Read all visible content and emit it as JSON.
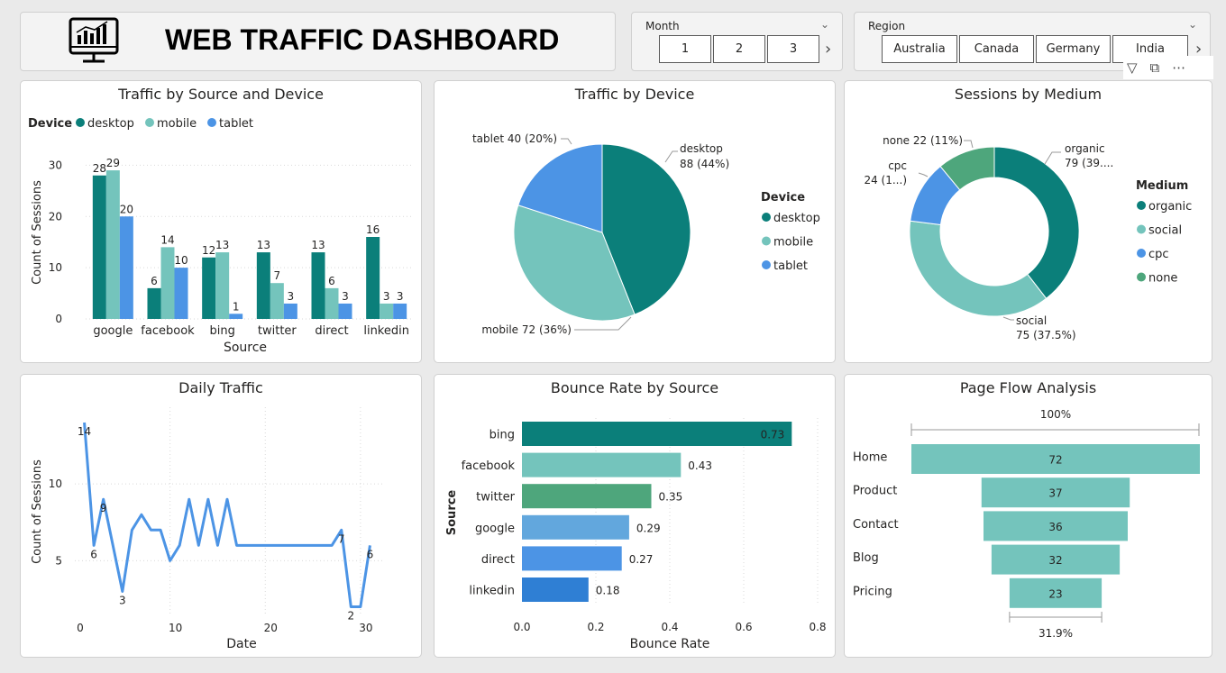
{
  "header": {
    "title": "WEB TRAFFIC DASHBOARD",
    "icon": "monitor-chart-icon"
  },
  "slicers": {
    "month": {
      "label": "Month",
      "options": [
        "1",
        "2",
        "3"
      ]
    },
    "region": {
      "label": "Region",
      "options": [
        "Australia",
        "Canada",
        "Germany",
        "India"
      ]
    }
  },
  "visual_header": {
    "icons": [
      "filter-icon",
      "focus-mode-icon",
      "more-options-icon"
    ]
  },
  "chart_data": [
    {
      "id": "source_device",
      "type": "bar",
      "title": "Traffic by Source and Device",
      "xlabel": "Source",
      "ylabel": "Count of Sessions",
      "legend_title": "Device",
      "legend_position": "top-left",
      "categories": [
        "google",
        "facebook",
        "bing",
        "twitter",
        "direct",
        "linkedin"
      ],
      "series": [
        {
          "name": "desktop",
          "color": "#0b7f7a",
          "values": [
            28,
            6,
            12,
            13,
            13,
            16
          ]
        },
        {
          "name": "mobile",
          "color": "#74c4bc",
          "values": [
            29,
            14,
            13,
            7,
            6,
            3
          ]
        },
        {
          "name": "tablet",
          "color": "#4c94e5",
          "values": [
            20,
            10,
            1,
            3,
            3,
            3
          ]
        }
      ],
      "yticks": [
        "0",
        "10",
        "20",
        "30"
      ],
      "ylim": [
        0,
        32
      ],
      "grid": true
    },
    {
      "id": "device_pie",
      "type": "pie",
      "title": "Traffic by Device",
      "legend_title": "Device",
      "legend_position": "right",
      "slices": [
        {
          "label": "desktop",
          "value": 88,
          "pct": "44%",
          "color": "#0b7f7a",
          "data_label": [
            "desktop",
            "88 (44%)"
          ]
        },
        {
          "label": "mobile",
          "value": 72,
          "pct": "36%",
          "color": "#74c4bc",
          "data_label": [
            "mobile 72 (36%)"
          ]
        },
        {
          "label": "tablet",
          "value": 40,
          "pct": "20%",
          "color": "#4c94e5",
          "data_label": [
            "tablet 40 (20%)"
          ]
        }
      ]
    },
    {
      "id": "medium_donut",
      "type": "pie",
      "title": "Sessions by Medium",
      "legend_title": "Medium",
      "legend_position": "right",
      "slices": [
        {
          "label": "organic",
          "value": 79,
          "color": "#0b7f7a",
          "data_label": [
            "organic",
            "79 (39...."
          ]
        },
        {
          "label": "social",
          "value": 75,
          "color": "#74c4bc",
          "data_label": [
            "social",
            "75 (37.5%)"
          ]
        },
        {
          "label": "cpc",
          "value": 24,
          "color": "#4c94e5",
          "data_label": [
            "cpc",
            "24 (1...)"
          ]
        },
        {
          "label": "none",
          "value": 22,
          "color": "#4ea67c",
          "data_label": [
            "none 22 (11%)"
          ]
        }
      ]
    },
    {
      "id": "daily",
      "type": "line",
      "title": "Daily Traffic",
      "xlabel": "Date",
      "ylabel": "Count of Sessions",
      "color": "#4c94e5",
      "x": [
        1,
        2,
        3,
        4,
        5,
        6,
        7,
        8,
        9,
        10,
        11,
        12,
        13,
        14,
        15,
        16,
        17,
        18,
        19,
        20,
        21,
        22,
        23,
        24,
        25,
        26,
        27,
        28,
        29,
        30,
        31
      ],
      "y": [
        14,
        6,
        9,
        6,
        3,
        7,
        8,
        7,
        7,
        5,
        6,
        9,
        6,
        9,
        6,
        9,
        6,
        6,
        6,
        6,
        6,
        6,
        6,
        6,
        6,
        6,
        6,
        7,
        2,
        2,
        6
      ],
      "labels": [
        {
          "x": 1,
          "y": 14,
          "text": "14"
        },
        {
          "x": 2,
          "y": 6,
          "text": "6"
        },
        {
          "x": 3,
          "y": 9,
          "text": "9"
        },
        {
          "x": 5,
          "y": 3,
          "text": "3"
        },
        {
          "x": 28,
          "y": 7,
          "text": "7"
        },
        {
          "x": 29,
          "y": 2,
          "text": "2"
        },
        {
          "x": 31,
          "y": 6,
          "text": "6"
        }
      ],
      "xticks": [
        "0",
        "10",
        "20",
        "30"
      ],
      "yticks": [
        "5",
        "10"
      ],
      "xlim": [
        0,
        32
      ],
      "ylim": [
        1.5,
        15
      ],
      "grid": true
    },
    {
      "id": "bounce",
      "type": "bar",
      "orientation": "horizontal",
      "title": "Bounce Rate by Source",
      "xlabel": "Bounce Rate",
      "ylabel": "Source",
      "categories": [
        "bing",
        "facebook",
        "twitter",
        "google",
        "direct",
        "linkedin"
      ],
      "values": [
        0.73,
        0.43,
        0.35,
        0.29,
        0.27,
        0.18
      ],
      "labels": [
        "0.73",
        "0.43",
        "0.35",
        "0.29",
        "0.27",
        "0.18"
      ],
      "colors": [
        "#0b7f7a",
        "#74c4bc",
        "#4ea67c",
        "#62a7dd",
        "#4c94e5",
        "#2f7fd4"
      ],
      "xticks": [
        "0.0",
        "0.2",
        "0.4",
        "0.6",
        "0.8"
      ],
      "xlim": [
        0,
        0.8
      ],
      "grid": true
    },
    {
      "id": "funnel",
      "type": "bar",
      "orientation": "funnel",
      "title": "Page Flow Analysis",
      "categories": [
        "Home",
        "Product",
        "Contact",
        "Blog",
        "Pricing"
      ],
      "values": [
        72,
        37,
        36,
        32,
        23
      ],
      "color": "#74c4bc",
      "top_label": "100%",
      "bottom_label": "31.9%"
    }
  ]
}
